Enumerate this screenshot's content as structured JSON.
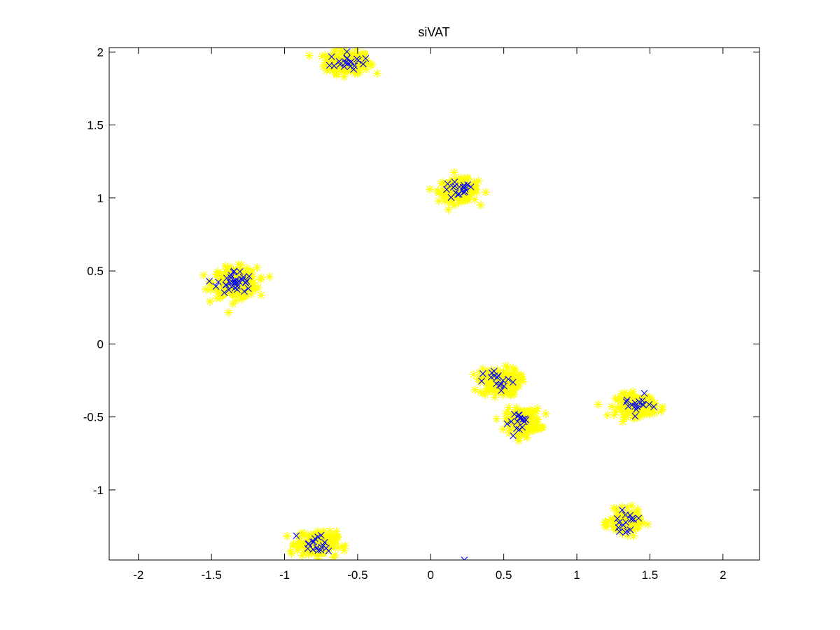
{
  "chart_data": {
    "type": "scatter",
    "title": "siVAT",
    "xlabel": "",
    "ylabel": "",
    "xlim": [
      -2.2,
      2.25
    ],
    "ylim": [
      -1.48,
      2.03
    ],
    "xticks": [
      -2,
      -1.5,
      -1,
      -0.5,
      0,
      0.5,
      1,
      1.5,
      2
    ],
    "xtick_labels": [
      "-2",
      "-1.5",
      "-1",
      "-0.5",
      "0",
      "0.5",
      "1",
      "1.5",
      "2"
    ],
    "yticks": [
      -1,
      -0.5,
      0,
      0.5,
      1,
      1.5,
      2
    ],
    "ytick_labels": [
      "-1",
      "-0.5",
      "0",
      "0.5",
      "1",
      "1.5",
      "2"
    ],
    "grid": false,
    "legend": "none",
    "box": true,
    "colors": {
      "all_points": "#ffff00",
      "sampled_points": "#0000ff"
    },
    "markers": {
      "all_points": "asterisk",
      "sampled_points": "x"
    },
    "clusters": [
      {
        "center": [
          -0.57,
          1.93
        ],
        "spread": [
          0.1,
          0.045
        ],
        "n_all": 200,
        "n_sample": 20
      },
      {
        "center": [
          0.19,
          1.05
        ],
        "spread": [
          0.09,
          0.045
        ],
        "n_all": 170,
        "n_sample": 18
      },
      {
        "center": [
          -1.34,
          0.42
        ],
        "spread": [
          0.1,
          0.06
        ],
        "n_all": 260,
        "n_sample": 35
      },
      {
        "center": [
          0.47,
          -0.26
        ],
        "spread": [
          0.09,
          0.055
        ],
        "n_all": 160,
        "n_sample": 16
      },
      {
        "center": [
          0.63,
          -0.53
        ],
        "spread": [
          0.08,
          0.05
        ],
        "n_all": 160,
        "n_sample": 16
      },
      {
        "center": [
          1.4,
          -0.42
        ],
        "spread": [
          0.09,
          0.045
        ],
        "n_all": 160,
        "n_sample": 16
      },
      {
        "center": [
          1.33,
          -1.22
        ],
        "spread": [
          0.07,
          0.045
        ],
        "n_all": 150,
        "n_sample": 16
      },
      {
        "center": [
          -0.78,
          -1.37
        ],
        "spread": [
          0.09,
          0.05
        ],
        "n_all": 170,
        "n_sample": 18
      }
    ],
    "outliers": [
      {
        "x": 0.23,
        "y": -1.48,
        "series": "sampled_points"
      }
    ]
  }
}
